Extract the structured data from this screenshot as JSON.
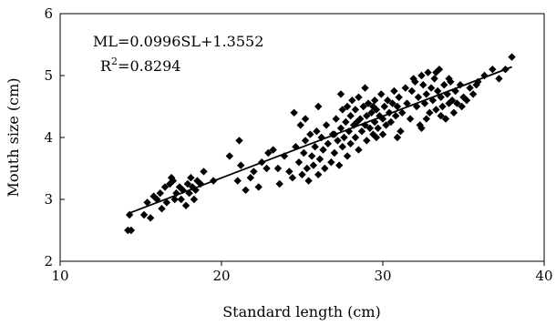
{
  "chart_data": {
    "type": "scatter",
    "title": "",
    "xlabel": "Standard length (cm)",
    "ylabel": "Mouth size (cm)",
    "xlim": [
      10,
      40
    ],
    "ylim": [
      2,
      6
    ],
    "x_ticks": [
      10,
      20,
      30,
      40
    ],
    "y_ticks": [
      2,
      3,
      4,
      5,
      6
    ],
    "x_tick_labels": [
      "10",
      "20",
      "30",
      "40"
    ],
    "y_tick_labels": [
      "2",
      "3",
      "4",
      "5",
      "6"
    ],
    "grid": false,
    "legend": "none",
    "marker": "diamond",
    "marker_color": "#000000",
    "annotations": {
      "equation": "ML=0.0996SL+1.3552",
      "r_squared_prefix": "R",
      "r_squared_sup": "2",
      "r_squared_value": "=0.8294"
    },
    "trendline": {
      "slope": 0.0996,
      "intercept": 1.3552,
      "x_start": 14.2,
      "x_end": 38.0
    },
    "series": [
      {
        "points": [
          [
            14.2,
            2.5
          ],
          [
            14.4,
            2.5
          ],
          [
            14.3,
            2.75
          ],
          [
            15.2,
            2.75
          ],
          [
            15.6,
            2.7
          ],
          [
            15.4,
            2.95
          ],
          [
            15.8,
            3.05
          ],
          [
            16.0,
            3.0
          ],
          [
            16.2,
            3.1
          ],
          [
            16.5,
            3.2
          ],
          [
            16.6,
            2.95
          ],
          [
            16.8,
            3.25
          ],
          [
            16.9,
            3.35
          ],
          [
            17.0,
            3.3
          ],
          [
            17.2,
            3.1
          ],
          [
            17.4,
            3.2
          ],
          [
            17.5,
            3.0
          ],
          [
            17.6,
            3.15
          ],
          [
            17.8,
            2.9
          ],
          [
            17.9,
            3.25
          ],
          [
            18.0,
            3.1
          ],
          [
            18.1,
            3.35
          ],
          [
            18.2,
            3.2
          ],
          [
            18.3,
            3.0
          ],
          [
            18.5,
            3.3
          ],
          [
            18.7,
            3.25
          ],
          [
            18.9,
            3.45
          ],
          [
            16.3,
            2.85
          ],
          [
            17.1,
            3.0
          ],
          [
            18.4,
            3.15
          ],
          [
            19.5,
            3.3
          ],
          [
            20.5,
            3.7
          ],
          [
            21.0,
            3.3
          ],
          [
            21.2,
            3.55
          ],
          [
            21.5,
            3.15
          ],
          [
            21.8,
            3.35
          ],
          [
            22.0,
            3.45
          ],
          [
            22.3,
            3.2
          ],
          [
            22.5,
            3.6
          ],
          [
            22.8,
            3.5
          ],
          [
            21.1,
            3.95
          ],
          [
            22.9,
            3.75
          ],
          [
            23.2,
            3.8
          ],
          [
            23.5,
            3.5
          ],
          [
            23.6,
            3.25
          ],
          [
            23.9,
            3.7
          ],
          [
            24.2,
            3.45
          ],
          [
            24.4,
            3.35
          ],
          [
            24.6,
            3.85
          ],
          [
            24.8,
            3.6
          ],
          [
            25.0,
            3.4
          ],
          [
            25.1,
            3.75
          ],
          [
            25.2,
            3.95
          ],
          [
            25.3,
            3.5
          ],
          [
            25.4,
            3.3
          ],
          [
            25.5,
            4.05
          ],
          [
            25.6,
            3.7
          ],
          [
            25.7,
            3.55
          ],
          [
            25.8,
            3.85
          ],
          [
            25.9,
            4.1
          ],
          [
            24.5,
            4.4
          ],
          [
            24.9,
            4.2
          ],
          [
            25.2,
            4.3
          ],
          [
            26.0,
            3.4
          ],
          [
            26.1,
            3.65
          ],
          [
            26.2,
            4.0
          ],
          [
            26.3,
            3.8
          ],
          [
            26.4,
            3.5
          ],
          [
            26.5,
            4.2
          ],
          [
            26.6,
            3.9
          ],
          [
            26.8,
            3.6
          ],
          [
            26.9,
            4.05
          ],
          [
            27.0,
            3.75
          ],
          [
            27.1,
            4.3
          ],
          [
            27.2,
            3.95
          ],
          [
            27.3,
            3.55
          ],
          [
            27.4,
            4.15
          ],
          [
            27.5,
            4.45
          ],
          [
            27.5,
            3.85
          ],
          [
            27.6,
            4.0
          ],
          [
            27.7,
            4.25
          ],
          [
            27.8,
            4.5
          ],
          [
            27.8,
            3.7
          ],
          [
            27.9,
            4.1
          ],
          [
            28.0,
            4.35
          ],
          [
            28.0,
            3.9
          ],
          [
            28.1,
            4.6
          ],
          [
            28.2,
            4.2
          ],
          [
            28.3,
            4.0
          ],
          [
            28.3,
            4.45
          ],
          [
            28.4,
            4.25
          ],
          [
            28.5,
            4.65
          ],
          [
            28.5,
            3.8
          ],
          [
            28.6,
            4.3
          ],
          [
            28.7,
            4.1
          ],
          [
            28.8,
            4.5
          ],
          [
            28.9,
            4.2
          ],
          [
            29.0,
            4.35
          ],
          [
            29.0,
            3.95
          ],
          [
            29.1,
            4.55
          ],
          [
            29.2,
            4.15
          ],
          [
            29.3,
            4.4
          ],
          [
            29.4,
            4.05
          ],
          [
            29.5,
            4.6
          ],
          [
            29.5,
            4.25
          ],
          [
            29.6,
            4.45
          ],
          [
            29.7,
            4.15
          ],
          [
            29.8,
            4.35
          ],
          [
            29.9,
            4.7
          ],
          [
            30.0,
            4.3
          ],
          [
            30.0,
            4.05
          ],
          [
            30.1,
            4.5
          ],
          [
            30.2,
            4.2
          ],
          [
            30.3,
            4.6
          ],
          [
            30.4,
            4.4
          ],
          [
            30.5,
            4.25
          ],
          [
            30.6,
            4.55
          ],
          [
            30.7,
            4.75
          ],
          [
            30.8,
            4.35
          ],
          [
            30.9,
            4.5
          ],
          [
            27.4,
            4.7
          ],
          [
            28.9,
            4.8
          ],
          [
            26.0,
            4.5
          ],
          [
            27.0,
            4.05
          ],
          [
            29.4,
            4.5
          ],
          [
            31.0,
            4.65
          ],
          [
            31.2,
            4.4
          ],
          [
            31.4,
            4.8
          ],
          [
            31.5,
            4.55
          ],
          [
            31.7,
            4.3
          ],
          [
            31.8,
            4.75
          ],
          [
            32.0,
            4.9
          ],
          [
            32.1,
            4.5
          ],
          [
            32.2,
            4.65
          ],
          [
            32.3,
            4.2
          ],
          [
            32.4,
            5.0
          ],
          [
            32.5,
            4.85
          ],
          [
            32.6,
            4.55
          ],
          [
            32.7,
            4.7
          ],
          [
            32.8,
            5.05
          ],
          [
            32.9,
            4.4
          ],
          [
            33.0,
            4.8
          ],
          [
            33.1,
            4.6
          ],
          [
            33.2,
            4.95
          ],
          [
            33.3,
            4.45
          ],
          [
            33.4,
            4.75
          ],
          [
            33.5,
            5.1
          ],
          [
            33.6,
            4.65
          ],
          [
            33.7,
            4.5
          ],
          [
            33.8,
            4.85
          ],
          [
            33.9,
            4.3
          ],
          [
            34.0,
            4.7
          ],
          [
            34.1,
            4.55
          ],
          [
            34.2,
            4.9
          ],
          [
            34.3,
            4.6
          ],
          [
            34.4,
            4.4
          ],
          [
            34.5,
            4.75
          ],
          [
            34.6,
            4.55
          ],
          [
            34.8,
            4.85
          ],
          [
            35.0,
            4.65
          ],
          [
            35.2,
            4.6
          ],
          [
            35.4,
            4.8
          ],
          [
            35.6,
            4.7
          ],
          [
            35.9,
            4.9
          ],
          [
            31.1,
            4.1
          ],
          [
            32.4,
            4.15
          ],
          [
            33.6,
            4.35
          ],
          [
            34.9,
            4.5
          ],
          [
            36.3,
            5.0
          ],
          [
            36.8,
            5.1
          ],
          [
            37.6,
            5.1
          ],
          [
            38.0,
            5.3
          ],
          [
            37.2,
            4.95
          ],
          [
            35.8,
            4.85
          ],
          [
            30.9,
            4.0
          ],
          [
            29.6,
            4.0
          ],
          [
            31.9,
            4.95
          ],
          [
            33.3,
            5.05
          ],
          [
            32.7,
            4.3
          ],
          [
            34.1,
            4.95
          ]
        ]
      }
    ]
  }
}
